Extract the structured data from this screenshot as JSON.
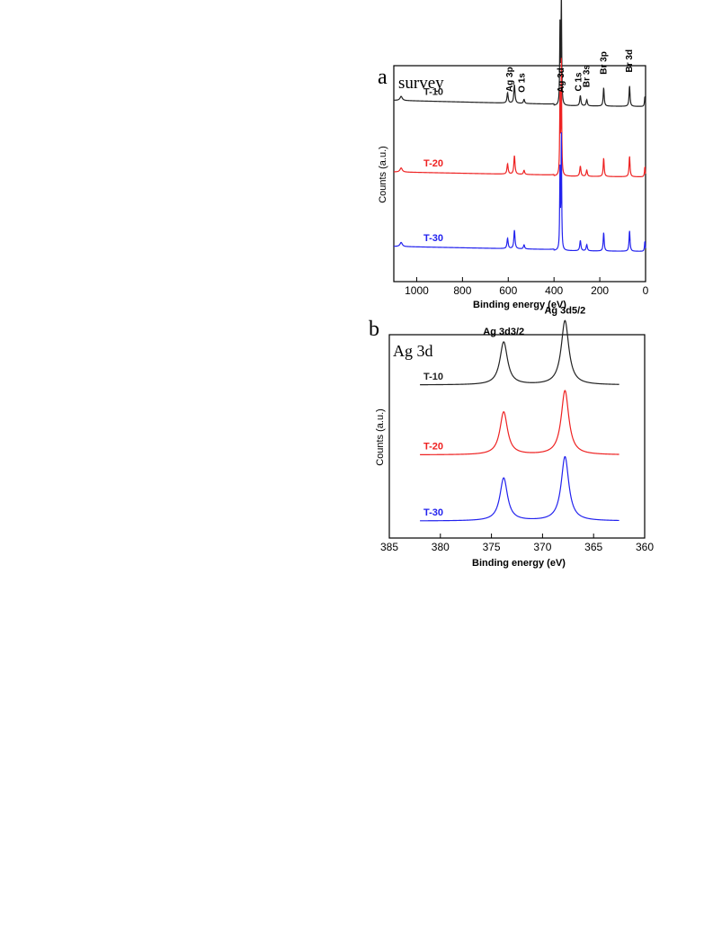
{
  "chart_data": [
    {
      "panel_letter": "a",
      "panel_title": "survey",
      "type": "line",
      "xlabel": "Binding energy (eV)",
      "ylabel": "Counts (a.u.)",
      "xlim": [
        1100,
        0
      ],
      "x_reversed": true,
      "x_ticks": [
        1000,
        800,
        600,
        400,
        200,
        0
      ],
      "y_ticks_shown": false,
      "grid": false,
      "legend": "inline labels at left of each trace",
      "series": [
        {
          "name": "T-10",
          "color": "#222222",
          "baseline": 0.82,
          "slope": 0.1
        },
        {
          "name": "T-20",
          "color": "#ee2222",
          "baseline": 0.48,
          "slope": 0.08
        },
        {
          "name": "T-30",
          "color": "#2222ee",
          "baseline": 0.12,
          "slope": 0.08
        }
      ],
      "peaks": [
        {
          "x": 1068,
          "h": 0.02,
          "w": 6
        },
        {
          "x": 603,
          "h": 0.05,
          "w": 3
        },
        {
          "x": 573,
          "h": 0.09,
          "w": 3
        },
        {
          "x": 531,
          "h": 0.02,
          "w": 3
        },
        {
          "x": 374,
          "h": 0.38,
          "w": 1.6
        },
        {
          "x": 368,
          "h": 0.55,
          "w": 1.6
        },
        {
          "x": 285,
          "h": 0.05,
          "w": 3
        },
        {
          "x": 257,
          "h": 0.03,
          "w": 3
        },
        {
          "x": 183,
          "h": 0.09,
          "w": 2.5
        },
        {
          "x": 70,
          "h": 0.1,
          "w": 2.5
        },
        {
          "x": 3,
          "h": 0.05,
          "w": 2
        }
      ],
      "annotations": [
        {
          "text": "Ag 3p",
          "x": 593
        },
        {
          "text": "O 1s",
          "x": 540
        },
        {
          "text": "Ag 3d",
          "x": 370
        },
        {
          "text": "C 1s",
          "x": 292
        },
        {
          "text": "Br 3s",
          "x": 258
        },
        {
          "text": "Br 3p",
          "x": 183
        },
        {
          "text": "Br 3d",
          "x": 70
        }
      ]
    },
    {
      "panel_letter": "b",
      "panel_title": "Ag 3d",
      "type": "line",
      "xlabel": "Binding energy (eV)",
      "ylabel": "Counts (a.u.)",
      "xlim": [
        385,
        360
      ],
      "x_reversed": true,
      "x_ticks": [
        385,
        380,
        375,
        370,
        365,
        360
      ],
      "x_range_plotted": [
        382,
        362.5
      ],
      "y_ticks_shown": false,
      "grid": false,
      "legend": "inline labels at left of each trace",
      "series": [
        {
          "name": "T-10",
          "color": "#222222",
          "baseline": 0.76
        },
        {
          "name": "T-20",
          "color": "#ee2222",
          "baseline": 0.4
        },
        {
          "name": "T-30",
          "color": "#2222ee",
          "baseline": 0.06
        }
      ],
      "peaks": [
        {
          "x": 373.8,
          "h": 0.22,
          "w": 0.45
        },
        {
          "x": 367.8,
          "h": 0.33,
          "w": 0.45
        }
      ],
      "annotations": [
        {
          "text": "Ag 3d3/2",
          "x": 373.8
        },
        {
          "text": "Ag 3d5/2",
          "x": 367.8
        }
      ]
    }
  ]
}
